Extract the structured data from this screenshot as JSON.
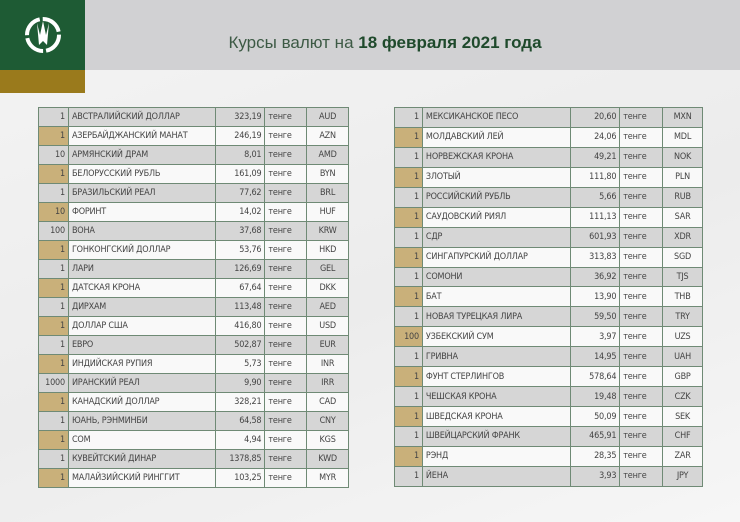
{
  "header": {
    "title_prefix": "Курсы валют на ",
    "title_date": "18 февраля 2021 года"
  },
  "unit_label": "тенге",
  "colors": {
    "brand_green": "#1e5b34",
    "brand_gold": "#9a7a1c",
    "row_highlight": "#c9b07a"
  },
  "left_table": [
    [
      "1",
      "АВСТРАЛИЙСКИЙ ДОЛЛАР",
      "323,19",
      "тенге",
      "AUD"
    ],
    [
      "1",
      "АЗЕРБАЙДЖАНСКИЙ МАНАТ",
      "246,19",
      "тенге",
      "AZN"
    ],
    [
      "10",
      "АРМЯНСКИЙ  ДРАМ",
      "8,01",
      "тенге",
      "AMD"
    ],
    [
      "1",
      "БЕЛОРУССКИЙ РУБЛЬ",
      "161,09",
      "тенге",
      "BYN"
    ],
    [
      "1",
      "БРАЗИЛЬСКИЙ РЕАЛ",
      "77,62",
      "тенге",
      "BRL"
    ],
    [
      "10",
      "ФОРИНТ",
      "14,02",
      "тенге",
      "HUF"
    ],
    [
      "100",
      "ВОНА",
      "37,68",
      "тенге",
      "KRW"
    ],
    [
      "1",
      "ГОНКОНГСКИЙ ДОЛЛАР",
      "53,76",
      "тенге",
      "HKD"
    ],
    [
      "1",
      "ЛАРИ",
      "126,69",
      "тенге",
      "GEL"
    ],
    [
      "1",
      "ДАТСКАЯ КРОНА",
      "67,64",
      "тенге",
      "DKK"
    ],
    [
      "1",
      "ДИРХАМ",
      "113,48",
      "тенге",
      "AED"
    ],
    [
      "1",
      "ДОЛЛАР США",
      "416,80",
      "тенге",
      "USD"
    ],
    [
      "1",
      "ЕВРО",
      "502,87",
      "тенге",
      "EUR"
    ],
    [
      "1",
      "ИНДИЙСКАЯ РУПИЯ",
      "5,73",
      "тенге",
      "INR"
    ],
    [
      "1000",
      "ИРАНСКИЙ РЕАЛ",
      "9,90",
      "тенге",
      "IRR"
    ],
    [
      "1",
      "КАНАДСКИЙ ДОЛЛАР",
      "328,21",
      "тенге",
      "CAD"
    ],
    [
      "1",
      "ЮАНЬ, РЭНМИНБИ",
      "64,58",
      "тенге",
      "CNY"
    ],
    [
      "1",
      "СОМ",
      "4,94",
      "тенге",
      "KGS"
    ],
    [
      "1",
      "КУВЕЙТСКИЙ ДИНАР",
      "1378,85",
      "тенге",
      "KWD"
    ],
    [
      "1",
      "МАЛАЙЗИЙСКИЙ РИНГГИТ",
      "103,25",
      "тенге",
      "MYR"
    ]
  ],
  "right_table": [
    [
      "1",
      "МЕКСИКАНСКОЕ ПЕСО",
      "20,60",
      "тенге",
      "MXN"
    ],
    [
      "1",
      "МОЛДАВСКИЙ ЛЕЙ",
      "24,06",
      "тенге",
      "MDL"
    ],
    [
      "1",
      "НОРВЕЖСКАЯ КРОНА",
      "49,21",
      "тенге",
      "NOK"
    ],
    [
      "1",
      "ЗЛОТЫЙ",
      "111,80",
      "тенге",
      "PLN"
    ],
    [
      "1",
      "РОССИЙСКИЙ РУБЛЬ",
      "5,66",
      "тенге",
      "RUB"
    ],
    [
      "1",
      "САУДОВСКИЙ РИЯЛ",
      "111,13",
      "тенге",
      "SAR"
    ],
    [
      "1",
      "СДР",
      "601,93",
      "тенге",
      "XDR"
    ],
    [
      "1",
      "СИНГАПУРСКИЙ ДОЛЛАР",
      "313,83",
      "тенге",
      "SGD"
    ],
    [
      "1",
      "СОМОНИ",
      "36,92",
      "тенге",
      "TJS"
    ],
    [
      "1",
      "БАТ",
      "13,90",
      "тенге",
      "THB"
    ],
    [
      "1",
      "НОВАЯ ТУРЕЦКАЯ ЛИРА",
      "59,50",
      "тенге",
      "TRY"
    ],
    [
      "100",
      "УЗБЕКСКИЙ СУМ",
      "3,97",
      "тенге",
      "UZS"
    ],
    [
      "1",
      "ГРИВНА",
      "14,95",
      "тенге",
      "UAH"
    ],
    [
      "1",
      "ФУНТ СТЕРЛИНГОВ",
      "578,64",
      "тенге",
      "GBP"
    ],
    [
      "1",
      "ЧЕШСКАЯ КРОНА",
      "19,48",
      "тенге",
      "CZK"
    ],
    [
      "1",
      "ШВЕДСКАЯ КРОНА",
      "50,09",
      "тенге",
      "SEK"
    ],
    [
      "1",
      "ШВЕЙЦАРСКИЙ ФРАНК",
      "465,91",
      "тенге",
      "CHF"
    ],
    [
      "1",
      "РЭНД",
      "28,35",
      "тенге",
      "ZAR"
    ],
    [
      "1",
      "ЙЕНА",
      "3,93",
      "тенге",
      "JPY"
    ]
  ]
}
